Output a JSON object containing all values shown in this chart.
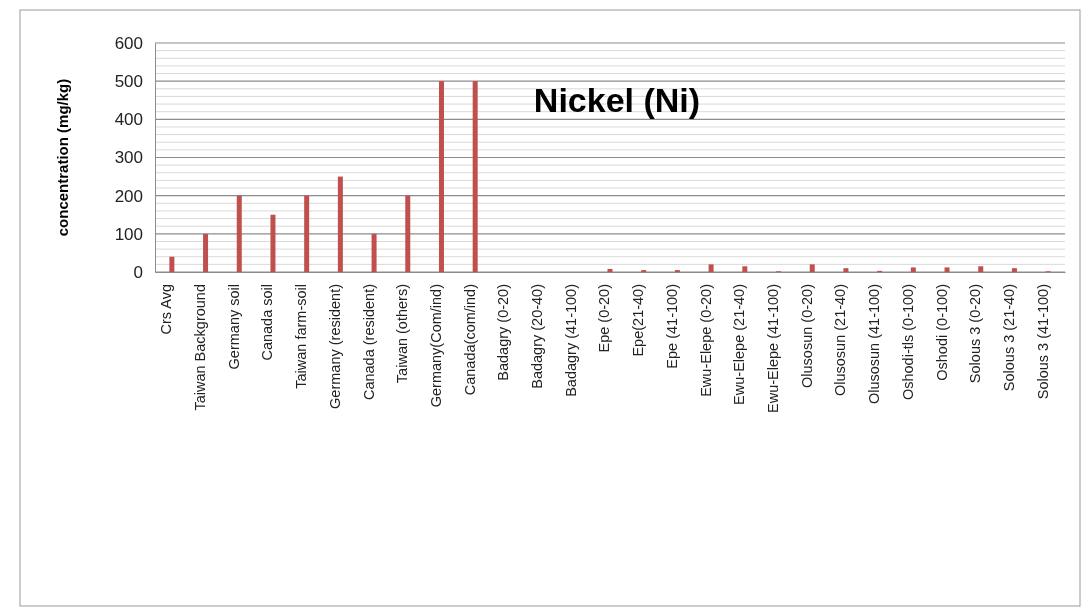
{
  "chart_data": {
    "type": "bar",
    "title": "Nickel (Ni)",
    "ylabel": "concentration (mg/kg)",
    "categories": [
      "Crs Avg",
      "Taiwan Background",
      "Germany soil",
      "Canada soil",
      "Taiwan farm-soil",
      "Germany (resident)",
      "Canada (resident)",
      "Taiwan (others)",
      "Germany(Com/ind)",
      "Canada(com/ind)",
      "Badagry (0-20)",
      "Badagry (20-40)",
      "Badagry (41-100)",
      "Epe (0-20)",
      "Epe(21-40)",
      "Epe (41-100)",
      "Ewu-Elepe (0-20)",
      "Ewu-Elepe (21-40)",
      "Ewu-Elepe (41-100)",
      "Olusosun (0-20)",
      "Olusosun (21-40)",
      "Olusosun (41-100)",
      "Oshodi-tls (0-100)",
      "Oshodi (0-100)",
      "Solous 3 (0-20)",
      "Solous 3 (21-40)",
      "Solous 3 (41-100)"
    ],
    "values": [
      40,
      100,
      200,
      150,
      200,
      250,
      100,
      200,
      500,
      500,
      0,
      0,
      0,
      8,
      5,
      5,
      20,
      15,
      2,
      20,
      10,
      3,
      12,
      12,
      15,
      10,
      2
    ],
    "color": "#c0504d",
    "ylim": [
      0,
      600
    ],
    "yticks": [
      0,
      {
        "value": 20,
        "label": null
      },
      {
        "value": 40,
        "label": null
      },
      {
        "value": 60,
        "label": null
      },
      {
        "value": 80,
        "label": null
      },
      100,
      {
        "value": 120,
        "label": null
      },
      {
        "value": 140,
        "label": null
      },
      {
        "value": 160,
        "label": null
      },
      {
        "value": 180,
        "label": null
      },
      200,
      {
        "value": 220,
        "label": null
      },
      {
        "value": 240,
        "label": null
      },
      {
        "value": 260,
        "label": null
      },
      {
        "value": 280,
        "label": null
      },
      300,
      {
        "value": 320,
        "label": null
      },
      {
        "value": 340,
        "label": null
      },
      {
        "value": 360,
        "label": null
      },
      {
        "value": 380,
        "label": null
      },
      400,
      {
        "value": 420,
        "label": null
      },
      {
        "value": 440,
        "label": null
      },
      {
        "value": 460,
        "label": null
      },
      {
        "value": 480,
        "label": null
      },
      500,
      {
        "value": 520,
        "label": null
      },
      {
        "value": 540,
        "label": null
      },
      {
        "value": 560,
        "label": null
      },
      {
        "value": 580,
        "label": null
      },
      600
    ],
    "grid": "y"
  }
}
